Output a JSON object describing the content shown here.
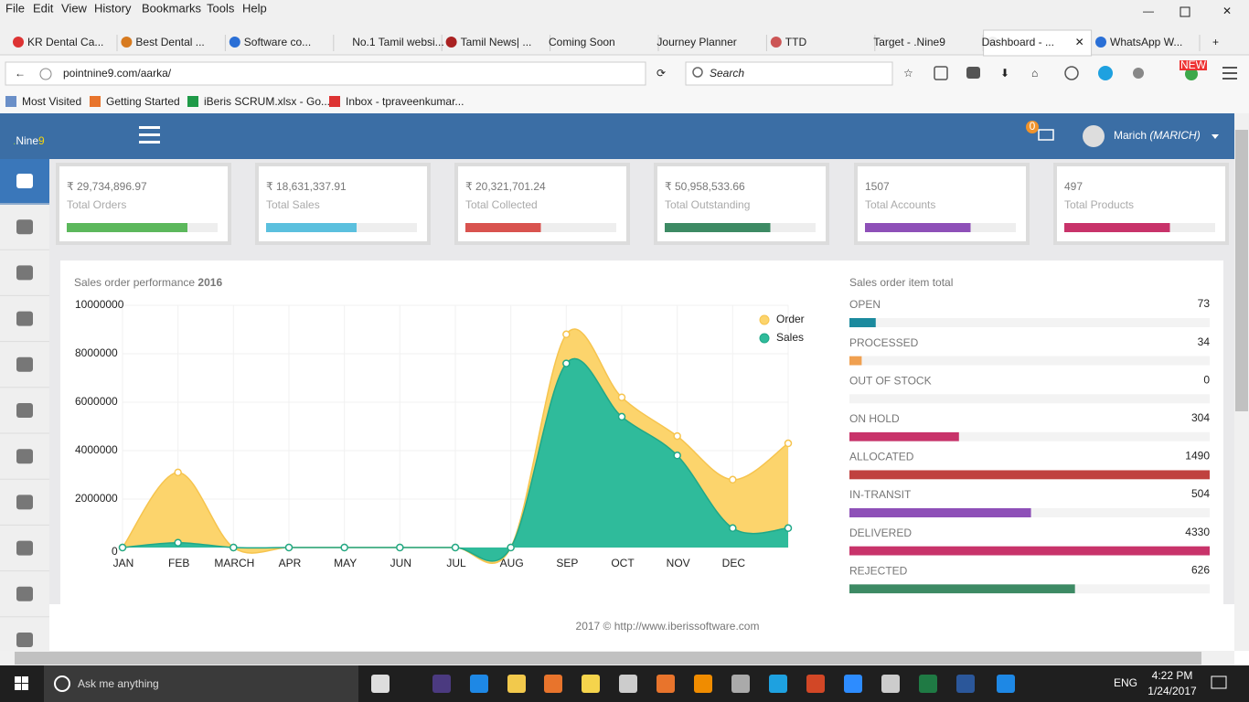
{
  "browser": {
    "menu": [
      "File",
      "Edit",
      "View",
      "History",
      "Bookmarks",
      "Tools",
      "Help"
    ],
    "tabs": [
      "KR Dental Ca...",
      "Best Dental ...",
      "Software co...",
      "No.1 Tamil websi...",
      "Tamil News| ...",
      "Coming Soon",
      "Journey Planner",
      "TTD",
      "Target - .Nine9",
      "Dashboard - ...",
      "WhatsApp W..."
    ],
    "url": "pointnine9.com/aarka/",
    "search_placeholder": "Search",
    "new_badge": "NEW",
    "bookmarks": [
      "Most Visited",
      "Getting Started",
      "iBeris SCRUM.xlsx - Go...",
      "Inbox - tpraveenkumar..."
    ]
  },
  "app": {
    "logo_dot": ".",
    "logo_name": "Nine",
    "logo_nine": "9",
    "notifications": 0,
    "user": "Marich",
    "user_role": "(MARICH)"
  },
  "stats": [
    {
      "value": "₹ 29,734,896.97",
      "label": "Total Orders",
      "progress": 80,
      "color": "#5cb85c"
    },
    {
      "value": "₹ 18,631,337.91",
      "label": "Total Sales",
      "progress": 60,
      "color": "#5bc0de"
    },
    {
      "value": "₹ 20,321,701.24",
      "label": "Total Collected",
      "progress": 50,
      "color": "#d9534f"
    },
    {
      "value": "₹ 50,958,533.66",
      "label": "Total Outstanding",
      "progress": 70,
      "color": "#3d8a64"
    },
    {
      "value": "1507",
      "label": "Total Accounts",
      "progress": 70,
      "color": "#8e50b8"
    },
    {
      "value": "497",
      "label": "Total Products",
      "progress": 70,
      "color": "#c8336a"
    }
  ],
  "chart_data": {
    "type": "area",
    "title": "Sales order performance",
    "title_year": "2016",
    "categories": [
      "JAN",
      "FEB",
      "MARCH",
      "APR",
      "MAY",
      "JUN",
      "JUL",
      "AUG",
      "SEP",
      "OCT",
      "NOV",
      "DEC",
      null
    ],
    "series": [
      {
        "name": "Order",
        "color": "#fcd46c",
        "values": [
          0,
          3100000,
          0,
          0,
          0,
          0,
          0,
          0,
          8800000,
          6200000,
          4600000,
          2800000,
          4300000
        ]
      },
      {
        "name": "Sales",
        "color": "#2fbb9b",
        "values": [
          0,
          200000,
          0,
          0,
          0,
          0,
          0,
          0,
          7600000,
          5400000,
          3800000,
          800000,
          800000
        ]
      }
    ],
    "ylim": [
      0,
      10000000
    ],
    "yticks": [
      0,
      2000000,
      4000000,
      6000000,
      8000000,
      10000000
    ],
    "grid": true,
    "legend": "top-right"
  },
  "items": {
    "title": "Sales order item total",
    "xlim": [
      0,
      1000
    ],
    "rows": [
      {
        "name": "OPEN",
        "value": 73,
        "color": "#1b8a9e"
      },
      {
        "name": "PROCESSED",
        "value": 34,
        "color": "#f0a050"
      },
      {
        "name": "OUT OF STOCK",
        "value": 0,
        "color": "#888888"
      },
      {
        "name": "ON HOLD",
        "value": 304,
        "color": "#c8336a"
      },
      {
        "name": "ALLOCATED",
        "value": 1490,
        "color": "#c0413f"
      },
      {
        "name": "IN-TRANSIT",
        "value": 504,
        "color": "#8e50b8"
      },
      {
        "name": "DELIVERED",
        "value": 4330,
        "color": "#c8336a"
      },
      {
        "name": "REJECTED",
        "value": 626,
        "color": "#3d8a64"
      }
    ]
  },
  "footer": "2017 © http://www.iberissoftware.com",
  "taskbar": {
    "search": "Ask me anything",
    "language": "ENG",
    "time": "4:22 PM",
    "date": "1/24/2017"
  }
}
